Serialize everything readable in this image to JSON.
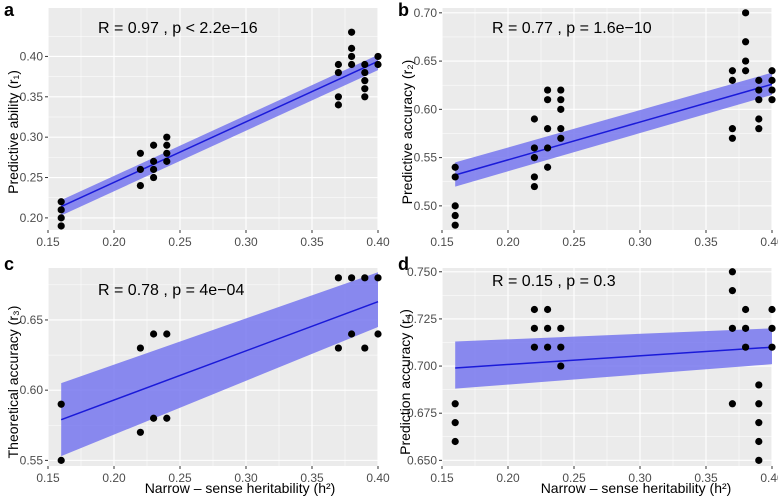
{
  "figure": {
    "x_axis_title": "Narrow – sense heritability (h²)",
    "x_ticks": [
      0.15,
      0.2,
      0.25,
      0.3,
      0.35,
      0.4
    ],
    "x_tick_labels": [
      "0.15",
      "0.20",
      "0.25",
      "0.30",
      "0.35",
      "0.40"
    ],
    "point_color": "#000000",
    "line_color": "#1a1ad9",
    "band_color": "#7777ee"
  },
  "chart_data": [
    {
      "type": "scatter",
      "panel": "a",
      "ylabel": "Predictive ability (r₁)",
      "stat_text": "R = 0.97 , p < 2.2e−16",
      "xlim": [
        0.15,
        0.4
      ],
      "ylim": [
        0.185,
        0.46
      ],
      "y_ticks": [
        0.2,
        0.25,
        0.3,
        0.35,
        0.4
      ],
      "y_tick_labels": [
        "0.20",
        "0.25",
        "0.30",
        "0.35",
        "0.40"
      ],
      "points": [
        [
          0.16,
          0.19
        ],
        [
          0.16,
          0.2
        ],
        [
          0.16,
          0.21
        ],
        [
          0.16,
          0.22
        ],
        [
          0.22,
          0.24
        ],
        [
          0.22,
          0.26
        ],
        [
          0.22,
          0.28
        ],
        [
          0.23,
          0.25
        ],
        [
          0.23,
          0.26
        ],
        [
          0.23,
          0.27
        ],
        [
          0.23,
          0.29
        ],
        [
          0.24,
          0.27
        ],
        [
          0.24,
          0.28
        ],
        [
          0.24,
          0.29
        ],
        [
          0.24,
          0.3
        ],
        [
          0.37,
          0.34
        ],
        [
          0.37,
          0.35
        ],
        [
          0.37,
          0.38
        ],
        [
          0.37,
          0.39
        ],
        [
          0.38,
          0.39
        ],
        [
          0.38,
          0.4
        ],
        [
          0.38,
          0.41
        ],
        [
          0.38,
          0.43
        ],
        [
          0.39,
          0.35
        ],
        [
          0.39,
          0.36
        ],
        [
          0.39,
          0.37
        ],
        [
          0.39,
          0.38
        ],
        [
          0.39,
          0.39
        ],
        [
          0.4,
          0.39
        ],
        [
          0.4,
          0.4
        ]
      ],
      "fit": {
        "x": [
          0.16,
          0.4
        ],
        "y": [
          0.214,
          0.394
        ],
        "band_low": [
          0.203,
          0.383
        ],
        "band_high": [
          0.222,
          0.402
        ]
      }
    },
    {
      "type": "scatter",
      "panel": "b",
      "ylabel": "Predictive accuracy (r₂)",
      "stat_text": "R = 0.77 , p = 1.6e−10",
      "xlim": [
        0.15,
        0.4
      ],
      "ylim": [
        0.475,
        0.705
      ],
      "y_ticks": [
        0.5,
        0.55,
        0.6,
        0.65,
        0.7
      ],
      "y_tick_labels": [
        "0.50",
        "0.55",
        "0.60",
        "0.65",
        "0.70"
      ],
      "points": [
        [
          0.16,
          0.48
        ],
        [
          0.16,
          0.49
        ],
        [
          0.16,
          0.5
        ],
        [
          0.16,
          0.53
        ],
        [
          0.16,
          0.54
        ],
        [
          0.22,
          0.52
        ],
        [
          0.22,
          0.53
        ],
        [
          0.22,
          0.55
        ],
        [
          0.22,
          0.56
        ],
        [
          0.22,
          0.59
        ],
        [
          0.23,
          0.54
        ],
        [
          0.23,
          0.56
        ],
        [
          0.23,
          0.58
        ],
        [
          0.23,
          0.61
        ],
        [
          0.23,
          0.62
        ],
        [
          0.24,
          0.57
        ],
        [
          0.24,
          0.58
        ],
        [
          0.24,
          0.6
        ],
        [
          0.24,
          0.61
        ],
        [
          0.24,
          0.62
        ],
        [
          0.37,
          0.57
        ],
        [
          0.37,
          0.58
        ],
        [
          0.37,
          0.63
        ],
        [
          0.37,
          0.64
        ],
        [
          0.38,
          0.64
        ],
        [
          0.38,
          0.65
        ],
        [
          0.38,
          0.67
        ],
        [
          0.38,
          0.7
        ],
        [
          0.39,
          0.58
        ],
        [
          0.39,
          0.59
        ],
        [
          0.39,
          0.61
        ],
        [
          0.39,
          0.62
        ],
        [
          0.39,
          0.63
        ],
        [
          0.4,
          0.61
        ],
        [
          0.4,
          0.62
        ],
        [
          0.4,
          0.63
        ],
        [
          0.4,
          0.64
        ]
      ],
      "fit": {
        "x": [
          0.16,
          0.4
        ],
        "y": [
          0.532,
          0.626
        ],
        "band_low": [
          0.52,
          0.615
        ],
        "band_high": [
          0.545,
          0.638
        ]
      }
    },
    {
      "type": "scatter",
      "panel": "c",
      "ylabel": "Theoretical accuracy (r₃)",
      "stat_text": "R = 0.78 , p = 4e−04",
      "xlim": [
        0.15,
        0.4
      ],
      "ylim": [
        0.546,
        0.687
      ],
      "y_ticks": [
        0.55,
        0.6,
        0.65
      ],
      "y_tick_labels": [
        "0.55",
        "0.60",
        "0.65"
      ],
      "points": [
        [
          0.16,
          0.55
        ],
        [
          0.16,
          0.59
        ],
        [
          0.22,
          0.57
        ],
        [
          0.22,
          0.63
        ],
        [
          0.23,
          0.58
        ],
        [
          0.23,
          0.64
        ],
        [
          0.24,
          0.58
        ],
        [
          0.24,
          0.64
        ],
        [
          0.37,
          0.63
        ],
        [
          0.37,
          0.68
        ],
        [
          0.38,
          0.64
        ],
        [
          0.38,
          0.68
        ],
        [
          0.39,
          0.63
        ],
        [
          0.39,
          0.68
        ],
        [
          0.4,
          0.64
        ],
        [
          0.4,
          0.68
        ]
      ],
      "fit": {
        "x": [
          0.16,
          0.4
        ],
        "y": [
          0.579,
          0.663
        ],
        "band_low": [
          0.553,
          0.645
        ],
        "band_high": [
          0.605,
          0.684
        ]
      }
    },
    {
      "type": "scatter",
      "panel": "d",
      "ylabel": "Prediction accuracy (r₄)",
      "stat_text": "R = 0.15 , p = 0.3",
      "xlim": [
        0.15,
        0.4
      ],
      "ylim": [
        0.647,
        0.752
      ],
      "y_ticks": [
        0.65,
        0.675,
        0.7,
        0.725,
        0.75
      ],
      "y_tick_labels": [
        "0.650",
        "0.675",
        "0.700",
        "0.725",
        "0.750"
      ],
      "points": [
        [
          0.16,
          0.66
        ],
        [
          0.16,
          0.67
        ],
        [
          0.16,
          0.68
        ],
        [
          0.22,
          0.71
        ],
        [
          0.22,
          0.72
        ],
        [
          0.22,
          0.73
        ],
        [
          0.23,
          0.71
        ],
        [
          0.23,
          0.72
        ],
        [
          0.23,
          0.73
        ],
        [
          0.24,
          0.7
        ],
        [
          0.24,
          0.71
        ],
        [
          0.24,
          0.72
        ],
        [
          0.37,
          0.68
        ],
        [
          0.37,
          0.72
        ],
        [
          0.37,
          0.74
        ],
        [
          0.37,
          0.75
        ],
        [
          0.38,
          0.71
        ],
        [
          0.38,
          0.72
        ],
        [
          0.38,
          0.73
        ],
        [
          0.39,
          0.65
        ],
        [
          0.39,
          0.66
        ],
        [
          0.39,
          0.67
        ],
        [
          0.39,
          0.68
        ],
        [
          0.39,
          0.69
        ],
        [
          0.4,
          0.71
        ],
        [
          0.4,
          0.72
        ],
        [
          0.4,
          0.73
        ]
      ],
      "fit": {
        "x": [
          0.16,
          0.4
        ],
        "y": [
          0.699,
          0.71
        ],
        "band_low": [
          0.688,
          0.701
        ],
        "band_high": [
          0.713,
          0.72
        ]
      }
    }
  ]
}
